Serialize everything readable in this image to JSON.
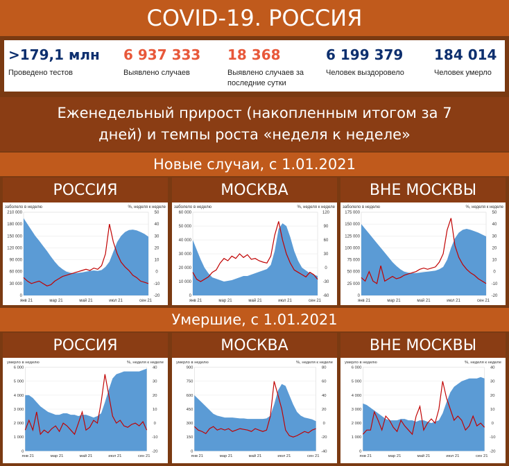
{
  "header": {
    "title": "COVID-19. РОССИЯ"
  },
  "stats": [
    {
      "value": ">179,1 млн",
      "label": "Проведено тестов",
      "color": "#0d2f6e"
    },
    {
      "value": "6 937 333",
      "label": "Выявлено случаев",
      "color": "#e8583a"
    },
    {
      "value": "18 368",
      "label": "Выявлено случаев за последние сутки",
      "color": "#e8583a"
    },
    {
      "value": "6 199 379",
      "label": "Человек выздоровело",
      "color": "#0d2f6e"
    },
    {
      "value": "184 014",
      "label": "Человек умерло",
      "color": "#0d2f6e"
    }
  ],
  "subtitle": {
    "line1": "Еженедельный прирост (накопленным итогом за 7",
    "line2": "дней) и темпы роста «неделя к неделе»"
  },
  "sections": [
    {
      "title": "Новые случаи, с 1.01.2021"
    },
    {
      "title": "Умершие, с 1.01.2021"
    }
  ],
  "panels": [
    "РОССИЯ",
    "МОСКВА",
    "ВНЕ МОСКВЫ"
  ],
  "chart_data": [
    {
      "type": "area",
      "region": "РОССИЯ",
      "metric": "cases",
      "ylabel": "заболело в неделю",
      "y2label": "%, неделя к неделе",
      "yticks": [
        "210 000",
        "180 000",
        "150 000",
        "120 000",
        "90 000",
        "60 000",
        "30 000",
        "0"
      ],
      "ylim": [
        0,
        210000
      ],
      "y2ticks": [
        "50",
        "40",
        "30",
        "20",
        "10",
        "0",
        "-10",
        "-20"
      ],
      "y2lim": [
        -20,
        50
      ],
      "xticks": [
        "янв 21",
        "мар 21",
        "май 21",
        "июл 21",
        "сен 21"
      ],
      "area": [
        195000,
        180000,
        165000,
        150000,
        138000,
        125000,
        112000,
        98000,
        85000,
        74000,
        66000,
        60000,
        57000,
        56000,
        57000,
        58000,
        60000,
        62000,
        63000,
        62000,
        64000,
        72000,
        85000,
        110000,
        135000,
        150000,
        160000,
        165000,
        166000,
        164000,
        160000,
        155000,
        148000
      ],
      "line": [
        -5,
        -8,
        -10,
        -9,
        -8,
        -10,
        -12,
        -11,
        -8,
        -6,
        -4,
        -3,
        -2,
        -1,
        0,
        1,
        2,
        1,
        3,
        2,
        5,
        15,
        40,
        25,
        15,
        8,
        4,
        1,
        -3,
        -5,
        -8,
        -9,
        -10
      ]
    },
    {
      "type": "area",
      "region": "МОСКВА",
      "metric": "cases",
      "ylabel": "заболело в неделю",
      "y2label": "%, неделя к неделе",
      "yticks": [
        "60 000",
        "50 000",
        "40 000",
        "30 000",
        "20 000",
        "10 000",
        "0"
      ],
      "ylim": [
        0,
        60000
      ],
      "y2ticks": [
        "120",
        "90",
        "60",
        "30",
        "0",
        "-30",
        "-60"
      ],
      "y2lim": [
        -60,
        120
      ],
      "xticks": [
        "янв 21",
        "мар 21",
        "май 21",
        "июл 21",
        "сен 21"
      ],
      "area": [
        40000,
        33000,
        26000,
        20000,
        16000,
        13000,
        12000,
        11000,
        10000,
        10500,
        11000,
        12000,
        13000,
        14000,
        14000,
        15000,
        16000,
        17000,
        18000,
        19000,
        22000,
        32000,
        48000,
        52000,
        50000,
        42000,
        32000,
        25000,
        20000,
        18000,
        16000,
        15000,
        14000
      ],
      "line": [
        -10,
        -25,
        -30,
        -25,
        -20,
        -10,
        -5,
        10,
        20,
        15,
        25,
        20,
        30,
        22,
        28,
        18,
        20,
        15,
        12,
        10,
        25,
        70,
        100,
        60,
        30,
        10,
        -5,
        -10,
        -15,
        -20,
        -10,
        -15,
        -25
      ]
    },
    {
      "type": "area",
      "region": "ВНЕ МОСКВЫ",
      "metric": "cases",
      "ylabel": "заболело в неделю",
      "y2label": "%, неделя к неделе",
      "yticks": [
        "175 000",
        "150 000",
        "125 000",
        "100 000",
        "75 000",
        "50 000",
        "25 000",
        "0"
      ],
      "ylim": [
        0,
        175000
      ],
      "y2ticks": [
        "50",
        "40",
        "30",
        "20",
        "10",
        "0",
        "-10",
        "-20"
      ],
      "y2lim": [
        -20,
        50
      ],
      "xticks": [
        "янв 21",
        "мар 21",
        "май 21",
        "июл 21",
        "сен 21"
      ],
      "area": [
        150000,
        140000,
        130000,
        120000,
        110000,
        100000,
        90000,
        80000,
        70000,
        62000,
        55000,
        50000,
        48000,
        47000,
        47000,
        48000,
        49000,
        50000,
        51000,
        52000,
        55000,
        60000,
        75000,
        100000,
        120000,
        132000,
        138000,
        140000,
        138000,
        135000,
        132000,
        128000,
        124000
      ],
      "line": [
        -5,
        -8,
        0,
        -8,
        -10,
        5,
        -8,
        -6,
        -4,
        -6,
        -5,
        -3,
        -2,
        -1,
        0,
        2,
        3,
        2,
        3,
        4,
        8,
        15,
        35,
        45,
        22,
        12,
        6,
        2,
        -1,
        -3,
        -6,
        -8,
        -10
      ]
    },
    {
      "type": "area",
      "region": "РОССИЯ",
      "metric": "deaths",
      "ylabel": "умерло в неделю",
      "y2label": "%, неделя к неделе",
      "yticks": [
        "6 000",
        "5 000",
        "4 000",
        "3 000",
        "2 000",
        "1 000",
        "0"
      ],
      "ylim": [
        0,
        6000
      ],
      "y2ticks": [
        "40",
        "30",
        "20",
        "10",
        "0",
        "-10",
        "-20"
      ],
      "y2lim": [
        -20,
        40
      ],
      "xticks": [
        "янв 21",
        "мар 21",
        "май 21",
        "июл 21",
        "сен 21"
      ],
      "area": [
        4000,
        4000,
        3800,
        3500,
        3200,
        3000,
        2800,
        2700,
        2600,
        2600,
        2700,
        2700,
        2600,
        2600,
        2500,
        2600,
        2600,
        2500,
        2400,
        2500,
        2700,
        3500,
        4400,
        5200,
        5500,
        5600,
        5700,
        5700,
        5700,
        5700,
        5700,
        5800,
        5900
      ],
      "line": [
        -5,
        2,
        -5,
        8,
        -8,
        -5,
        -7,
        -4,
        -2,
        -6,
        0,
        -2,
        -5,
        -8,
        0,
        8,
        -5,
        -3,
        2,
        0,
        15,
        35,
        20,
        5,
        0,
        2,
        -2,
        -3,
        -1,
        0,
        -2,
        1,
        -5
      ]
    },
    {
      "type": "area",
      "region": "МОСКВА",
      "metric": "deaths",
      "ylabel": "умерло в неделю",
      "y2label": "%, неделя к неделе",
      "yticks": [
        "900",
        "750",
        "600",
        "450",
        "300",
        "150",
        "0"
      ],
      "ylim": [
        0,
        900
      ],
      "y2ticks": [
        "80",
        "60",
        "40",
        "20",
        "0",
        "-20",
        "-40"
      ],
      "y2lim": [
        -40,
        80
      ],
      "xticks": [
        "янв 21",
        "мар 21",
        "май 21",
        "июл 21",
        "сен 21"
      ],
      "area": [
        600,
        560,
        520,
        480,
        440,
        400,
        380,
        370,
        360,
        360,
        360,
        355,
        350,
        350,
        345,
        345,
        345,
        345,
        345,
        350,
        380,
        500,
        650,
        720,
        700,
        600,
        500,
        420,
        380,
        360,
        350,
        340,
        320
      ],
      "line": [
        -5,
        -10,
        -12,
        -15,
        -8,
        -5,
        -10,
        -8,
        -10,
        -8,
        -12,
        -10,
        -8,
        -9,
        -10,
        -12,
        -8,
        -10,
        -12,
        -10,
        10,
        60,
        40,
        20,
        -10,
        -18,
        -20,
        -18,
        -15,
        -12,
        -14,
        -10,
        -8
      ]
    },
    {
      "type": "area",
      "region": "ВНЕ МОСКВЫ",
      "metric": "deaths",
      "ylabel": "умерло в неделю",
      "y2label": "%, неделя к неделе",
      "yticks": [
        "6 000",
        "5 000",
        "4 000",
        "3 000",
        "2 000",
        "1 000",
        "0"
      ],
      "ylim": [
        0,
        6000
      ],
      "y2ticks": [
        "40",
        "30",
        "20",
        "10",
        "0",
        "-10",
        "-20"
      ],
      "y2lim": [
        -20,
        40
      ],
      "xticks": [
        "янв 21",
        "мар 21",
        "май 21",
        "июл 21",
        "сен 21"
      ],
      "area": [
        3400,
        3300,
        3100,
        2900,
        2700,
        2500,
        2300,
        2200,
        2200,
        2200,
        2300,
        2300,
        2200,
        2200,
        2100,
        2200,
        2200,
        2100,
        2000,
        2100,
        2200,
        2700,
        3500,
        4200,
        4600,
        4800,
        5000,
        5100,
        5200,
        5200,
        5200,
        5300,
        5200
      ],
      "line": [
        -8,
        -5,
        -5,
        8,
        2,
        -5,
        5,
        2,
        -3,
        -6,
        2,
        -2,
        -5,
        -8,
        5,
        12,
        -5,
        0,
        3,
        0,
        10,
        30,
        18,
        10,
        2,
        5,
        2,
        -5,
        -2,
        5,
        -2,
        0,
        -3
      ]
    }
  ]
}
